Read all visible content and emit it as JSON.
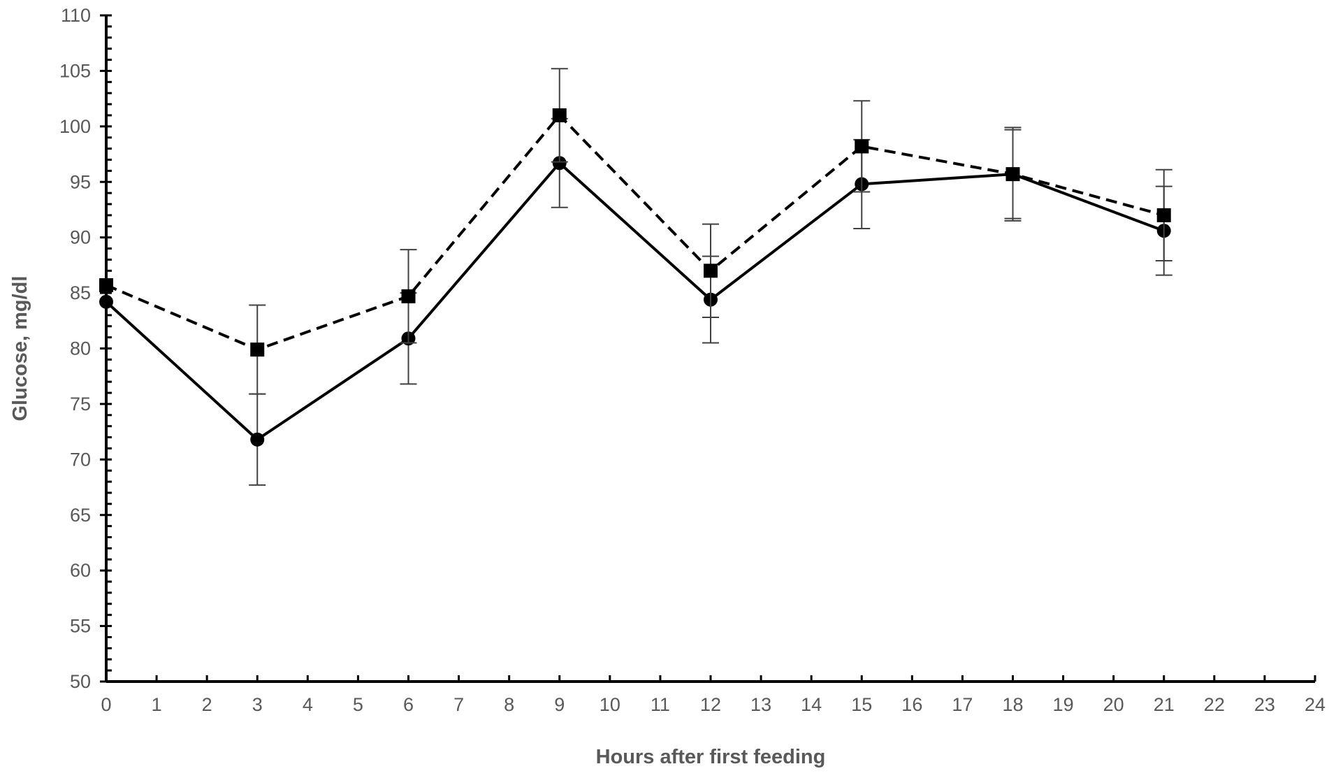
{
  "chart_data": {
    "type": "line",
    "title": "",
    "xlabel": "Hours after first feeding",
    "ylabel": "Glucose,  mg/dl",
    "xlim": [
      0,
      24
    ],
    "ylim": [
      50,
      110
    ],
    "xticks": [
      0,
      1,
      2,
      3,
      4,
      5,
      6,
      7,
      8,
      9,
      10,
      11,
      12,
      13,
      14,
      15,
      16,
      17,
      18,
      19,
      20,
      21,
      22,
      23,
      24
    ],
    "yticks": [
      50,
      55,
      60,
      65,
      70,
      75,
      80,
      85,
      90,
      95,
      100,
      105,
      110
    ],
    "y_minor_step": 1,
    "grid": false,
    "legend": "none",
    "series": [
      {
        "line": "solid",
        "marker": "circle",
        "color": "#000000",
        "x": [
          0,
          3,
          6,
          9,
          12,
          15,
          18,
          21
        ],
        "values": [
          84.2,
          71.8,
          80.9,
          96.7,
          84.4,
          94.8,
          95.7,
          90.6
        ],
        "error": [
          0,
          4.1,
          4.1,
          4.0,
          3.9,
          4.0,
          4.0,
          4.0
        ]
      },
      {
        "line": "dashed",
        "marker": "square",
        "color": "#000000",
        "x": [
          0,
          3,
          6,
          9,
          12,
          15,
          18,
          21
        ],
        "values": [
          85.7,
          79.9,
          84.7,
          101.0,
          87.0,
          98.2,
          95.7,
          92.0
        ],
        "error": [
          0,
          4.0,
          4.2,
          4.2,
          4.2,
          4.1,
          4.2,
          4.1
        ]
      }
    ]
  }
}
